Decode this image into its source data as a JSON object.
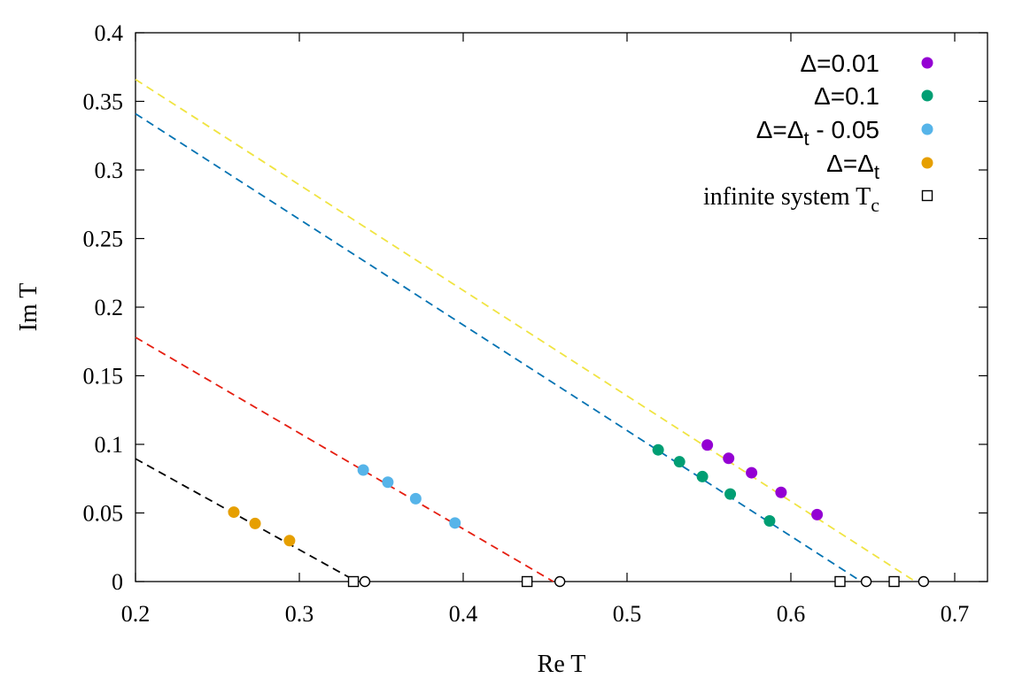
{
  "chart_data": {
    "type": "scatter",
    "xlabel": "Re T",
    "ylabel": "Im T",
    "xlim": [
      0.2,
      0.72
    ],
    "ylim": [
      0,
      0.4
    ],
    "x_ticks": [
      "0.2",
      "0.3",
      "0.4",
      "0.5",
      "0.6",
      "0.7"
    ],
    "y_ticks": [
      "0",
      "0.05",
      "0.1",
      "0.15",
      "0.2",
      "0.25",
      "0.3",
      "0.35",
      "0.4"
    ],
    "grid": false,
    "legend_position": "top-right",
    "series": [
      {
        "name": "Δ=0.01",
        "legend_label": {
          "base": "Δ=0.01"
        },
        "color": "#9400d3",
        "marker": "filled-circle",
        "points": [
          [
            0.549,
            0.0995
          ],
          [
            0.562,
            0.0898
          ],
          [
            0.576,
            0.0793
          ],
          [
            0.594,
            0.065
          ],
          [
            0.616,
            0.0488
          ]
        ]
      },
      {
        "name": "Δ=0.1",
        "legend_label": {
          "base": "Δ=0.1"
        },
        "color": "#009e73",
        "marker": "filled-circle",
        "points": [
          [
            0.519,
            0.096
          ],
          [
            0.532,
            0.0873
          ],
          [
            0.546,
            0.0765
          ],
          [
            0.563,
            0.0638
          ],
          [
            0.587,
            0.0442
          ]
        ]
      },
      {
        "name": "Δ=Δt - 0.05",
        "legend_label": {
          "base": "Δ=Δ",
          "sub": "t",
          "after": " - 0.05"
        },
        "color": "#56b4e9",
        "marker": "filled-circle",
        "points": [
          [
            0.339,
            0.0813
          ],
          [
            0.354,
            0.0724
          ],
          [
            0.371,
            0.0604
          ],
          [
            0.395,
            0.0427
          ]
        ]
      },
      {
        "name": "Δ=Δt",
        "legend_label": {
          "base": "Δ=Δ",
          "sub": "t",
          "after": ""
        },
        "color": "#e69f00",
        "marker": "filled-circle",
        "points": [
          [
            0.26,
            0.0506
          ],
          [
            0.273,
            0.0423
          ],
          [
            0.294,
            0.0298
          ]
        ]
      },
      {
        "name": "infinite system Tc",
        "legend_label": {
          "base": "infinite system T",
          "sub": "c",
          "after": ""
        },
        "color": "#000000",
        "marker": "open-square",
        "points": [
          [
            0.333,
            0
          ],
          [
            0.439,
            0
          ],
          [
            0.63,
            0
          ],
          [
            0.663,
            0
          ]
        ]
      }
    ],
    "open_circles": {
      "color": "#000000",
      "points": [
        [
          0.34,
          0
        ],
        [
          0.459,
          0
        ],
        [
          0.646,
          0
        ],
        [
          0.681,
          0
        ]
      ]
    },
    "fit_lines": [
      {
        "color": "#f0e442",
        "from": [
          0.2,
          0.366
        ],
        "to": [
          0.676,
          0
        ]
      },
      {
        "color": "#0072b2",
        "from": [
          0.2,
          0.341
        ],
        "to": [
          0.643,
          0
        ]
      },
      {
        "color": "#e51e10",
        "from": [
          0.2,
          0.178
        ],
        "to": [
          0.455,
          0
        ]
      },
      {
        "color": "#000000",
        "from": [
          0.2,
          0.0895
        ],
        "to": [
          0.335,
          0
        ]
      }
    ]
  }
}
